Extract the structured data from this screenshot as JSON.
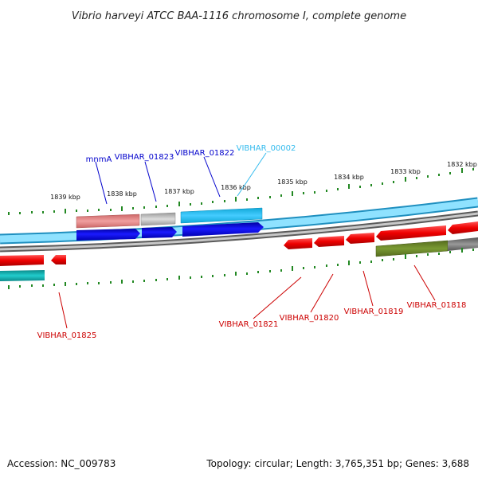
{
  "title": "Vibrio harveyi ATCC BAA-1116 chromosome I, complete genome",
  "footer": {
    "accession": "Accession: NC_009783",
    "summary": "Topology: circular; Length: 3,765,351 bp; Genes: 3,688"
  },
  "ticks": [
    "1839 kbp",
    "1838 kbp",
    "1837 kbp",
    "1836 kbp",
    "1835 kbp",
    "1834 kbp",
    "1833 kbp",
    "1832 kbp"
  ],
  "labels": {
    "mnmA": "mnmA",
    "b01823": "VIBHAR_01823",
    "b01822": "VIBHAR_01822",
    "b00002": "VIBHAR_00002",
    "r01825": "VIBHAR_01825",
    "r01821": "VIBHAR_01821",
    "r01820": "VIBHAR_01820",
    "r01819": "VIBHAR_01819",
    "r01818": "VIBHAR_01818"
  },
  "colors": {
    "label_blue": "#0000cc",
    "label_cyan": "#33bbee",
    "label_red": "#cc0000",
    "tick_green": "#228822",
    "strand_cyan": "#33ccff",
    "strand_gray": "#777777",
    "gene_blue": "#0000dd",
    "gene_red": "#ee0000",
    "gene_pink": "#dd7777",
    "gene_gray": "#aaaaaa",
    "gene_cyan": "#22bbdd",
    "gene_olive": "#668822",
    "gene_teal": "#11aaaa"
  }
}
